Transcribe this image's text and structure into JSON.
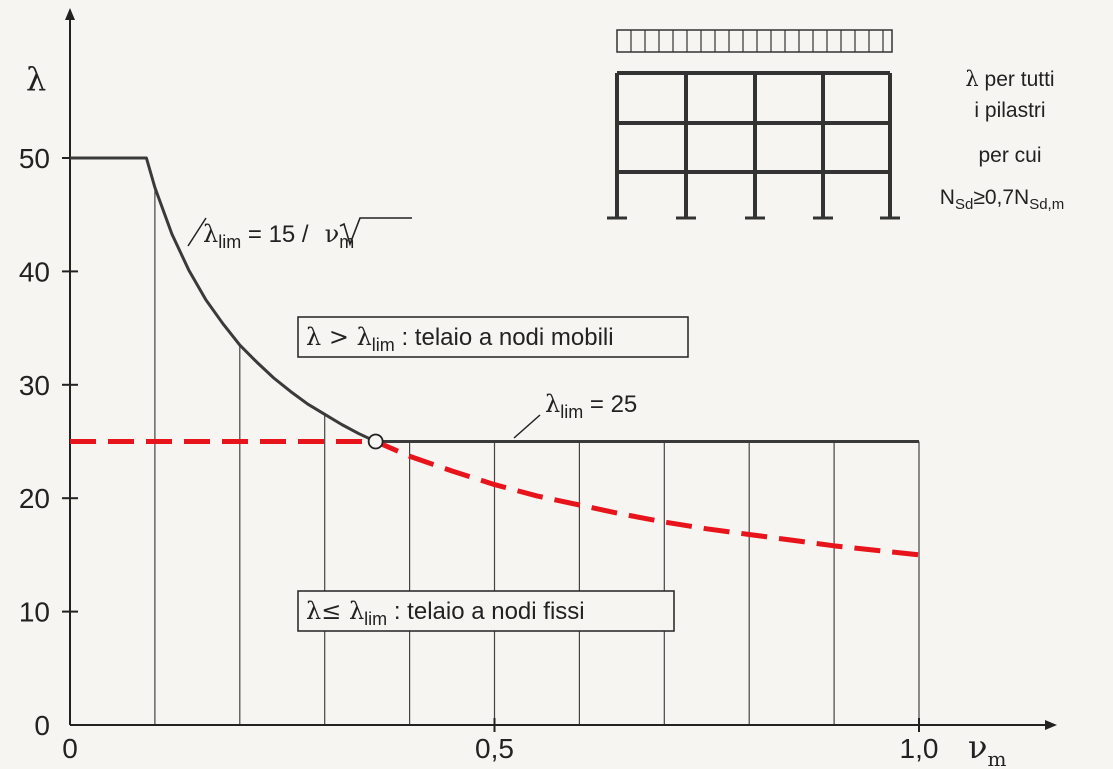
{
  "chart_data": {
    "type": "line",
    "title": "",
    "x_axis": {
      "label": "ν",
      "label_sub": "m",
      "range": [
        0,
        1.0
      ],
      "ticks": [
        0,
        0.5,
        1.0
      ],
      "tick_labels": [
        "0",
        "0,5",
        "1,0"
      ]
    },
    "y_axis": {
      "label": "λ",
      "range": [
        0,
        50
      ],
      "ticks": [
        0,
        10,
        20,
        30,
        40,
        50
      ],
      "tick_labels": [
        "0",
        "10",
        "20",
        "30",
        "40",
        "50"
      ]
    },
    "grid_x": [
      0.1,
      0.2,
      0.3,
      0.4,
      0.5,
      0.6,
      0.7,
      0.8,
      0.9,
      1.0
    ],
    "series": [
      {
        "role": "limit-curve",
        "color": "#3a3a3a",
        "style": "solid",
        "x": [
          0,
          0.09,
          0.1,
          0.12,
          0.14,
          0.16,
          0.18,
          0.2,
          0.22,
          0.24,
          0.26,
          0.28,
          0.3,
          0.32,
          0.34,
          0.36
        ],
        "y": [
          50,
          50,
          47.4,
          43.3,
          40.1,
          37.5,
          35.4,
          33.5,
          32.0,
          30.6,
          29.4,
          28.3,
          27.4,
          26.5,
          25.7,
          25.0
        ]
      },
      {
        "role": "plateau",
        "color": "#3a3a3a",
        "style": "solid",
        "x": [
          0.36,
          1.0
        ],
        "y": [
          25,
          25
        ]
      },
      {
        "role": "highlight",
        "color": "#e8141b",
        "style": "dashed",
        "x": [
          0.0,
          0.36,
          0.4,
          0.45,
          0.5,
          0.55,
          0.6,
          0.65,
          0.7,
          0.75,
          0.8,
          0.85,
          0.9,
          0.95,
          1.0
        ],
        "y": [
          25,
          25,
          23.7,
          22.4,
          21.2,
          20.2,
          19.4,
          18.6,
          17.9,
          17.3,
          16.8,
          16.3,
          15.8,
          15.4,
          15.0
        ]
      }
    ],
    "point_marker": {
      "x": 0.36,
      "y": 25
    },
    "annotations": {
      "curve_formula": {
        "lambda": "λ",
        "sub": "lim",
        "rest": " = 15 /",
        "sqrt_var": "ν",
        "sqrt_sub": "m"
      },
      "plateau_label": {
        "lambda": "λ",
        "sub": "lim",
        "rest": " = 25"
      },
      "mobile_box": {
        "lhs": "λ > λ",
        "sub": "lim",
        "text": " : telaio a nodi mobili"
      },
      "fixed_box": {
        "lhs": "λ≤ λ",
        "sub": "lim",
        "text": " : telaio a nodi fissi"
      },
      "side_note": {
        "line1_lambda": "λ",
        "line1_rest": " per tutti",
        "line2": "i pilastri",
        "line3": "per cui",
        "line4_a": "N",
        "line4_a_sub": "Sd",
        "line4_mid": "≥0,7N",
        "line4_b_sub": "Sd,m"
      }
    }
  }
}
